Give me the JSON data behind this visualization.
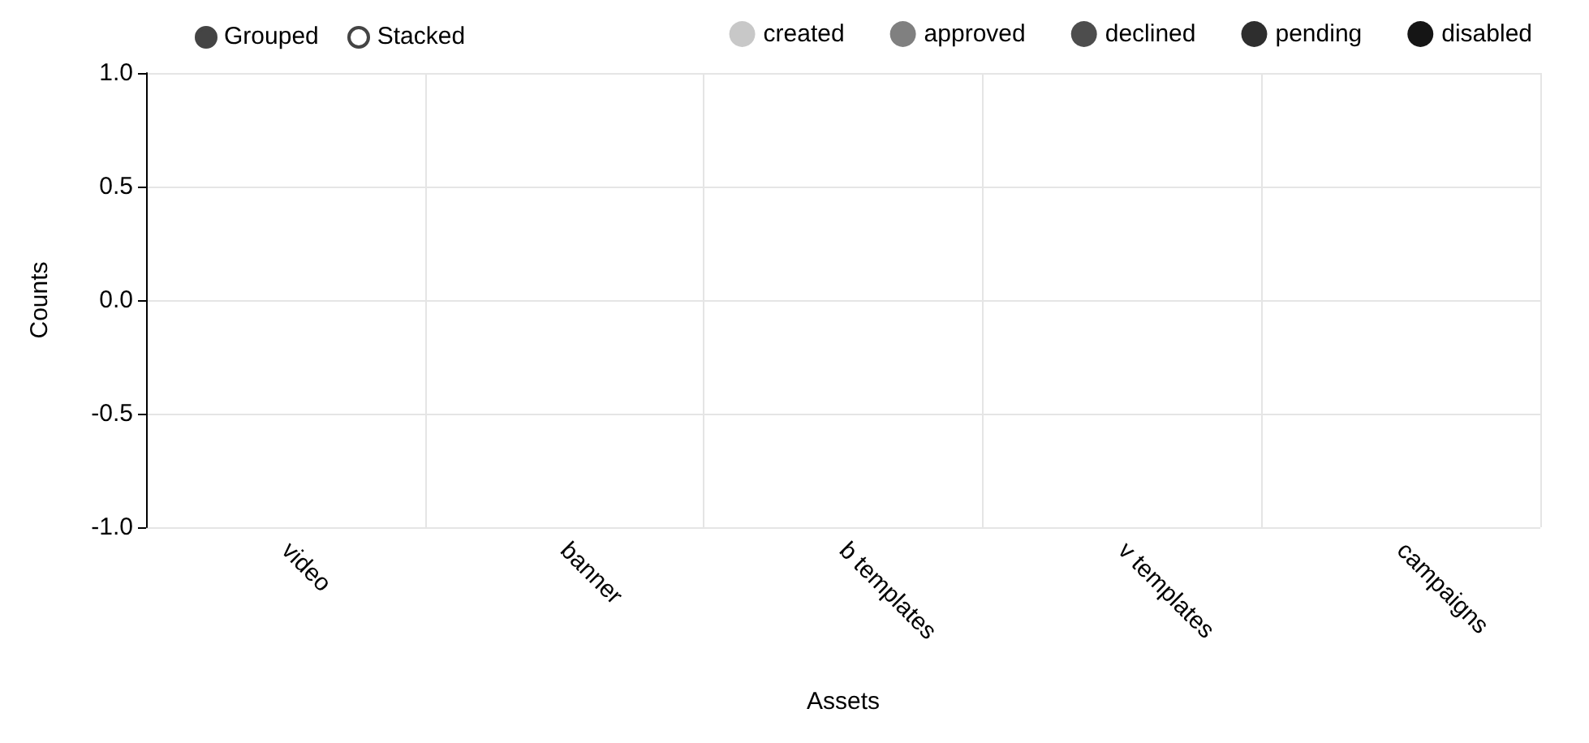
{
  "chart_data": {
    "type": "bar",
    "xlabel": "Assets",
    "ylabel": "Counts",
    "categories": [
      "video",
      "banner",
      "b templates",
      "v templates",
      "campaigns"
    ],
    "series": [
      {
        "name": "created",
        "color": "#c8c8c8",
        "values": [
          0,
          0,
          0,
          0,
          0
        ]
      },
      {
        "name": "approved",
        "color": "#808080",
        "values": [
          0,
          0,
          0,
          0,
          0
        ]
      },
      {
        "name": "declined",
        "color": "#4d4d4d",
        "values": [
          0,
          0,
          0,
          0,
          0
        ]
      },
      {
        "name": "pending",
        "color": "#2e2e2e",
        "values": [
          0,
          0,
          0,
          0,
          0
        ]
      },
      {
        "name": "disabled",
        "color": "#151515",
        "values": [
          0,
          0,
          0,
          0,
          0
        ]
      }
    ],
    "ylim": [
      -1,
      1
    ],
    "yticks": [
      {
        "value": -1,
        "label": "-1.0"
      },
      {
        "value": -0.5,
        "label": "-0.5"
      },
      {
        "value": 0,
        "label": "0.0"
      },
      {
        "value": 0.5,
        "label": "0.5"
      },
      {
        "value": 1,
        "label": "1.0"
      }
    ],
    "grid": true,
    "legend": "top right",
    "annotations": [
      "Grouped",
      "Stacked"
    ]
  }
}
